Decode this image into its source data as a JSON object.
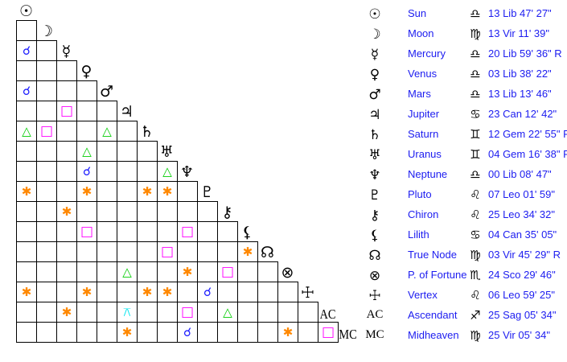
{
  "colors": {
    "conjunction": "#1a1aff",
    "square": "#ff00ff",
    "trine": "#00cc00",
    "sextile": "#ff8800",
    "quincunx": "#00e5ee",
    "text": "#1c1cf0"
  },
  "aspect_symbols": {
    "conjunction": "☌",
    "square": "□",
    "trine": "△",
    "sextile": "✱",
    "quincunx": "⚻"
  },
  "bodies": [
    {
      "icon": "sun-icon",
      "glyph": "☉",
      "name": "Sun",
      "sign_icon": "libra-icon",
      "sign": "♎",
      "position": "13 Lib 47' 27\""
    },
    {
      "icon": "moon-icon",
      "glyph": "☽",
      "name": "Moon",
      "sign_icon": "virgo-icon",
      "sign": "♍",
      "position": "13 Vir 11' 39\""
    },
    {
      "icon": "mercury-icon",
      "glyph": "☿",
      "name": "Mercury",
      "sign_icon": "libra-icon",
      "sign": "♎",
      "position": "20 Lib 59' 36\" R"
    },
    {
      "icon": "venus-icon",
      "glyph": "♀",
      "name": "Venus",
      "sign_icon": "libra-icon",
      "sign": "♎",
      "position": "03 Lib 38' 22\""
    },
    {
      "icon": "mars-icon",
      "glyph": "♂",
      "name": "Mars",
      "sign_icon": "libra-icon",
      "sign": "♎",
      "position": "13 Lib 13' 46\""
    },
    {
      "icon": "jupiter-icon",
      "glyph": "♃",
      "name": "Jupiter",
      "sign_icon": "cancer-icon",
      "sign": "♋",
      "position": "23 Can 12' 42\""
    },
    {
      "icon": "saturn-icon",
      "glyph": "♄",
      "name": "Saturn",
      "sign_icon": "gemini-icon",
      "sign": "♊",
      "position": "12 Gem 22' 55\" R"
    },
    {
      "icon": "uranus-icon",
      "glyph": "♅",
      "name": "Uranus",
      "sign_icon": "gemini-icon",
      "sign": "♊",
      "position": "04 Gem 16' 38\" R"
    },
    {
      "icon": "neptune-icon",
      "glyph": "♆",
      "name": "Neptune",
      "sign_icon": "libra-icon",
      "sign": "♎",
      "position": "00 Lib 08' 47\""
    },
    {
      "icon": "pluto-icon",
      "glyph": "♇",
      "name": "Pluto",
      "sign_icon": "leo-icon",
      "sign": "♌",
      "position": "07 Leo 01' 59\""
    },
    {
      "icon": "chiron-icon",
      "glyph": "⚷",
      "name": "Chiron",
      "sign_icon": "leo-icon",
      "sign": "♌",
      "position": "25 Leo 34' 32\""
    },
    {
      "icon": "lilith-icon",
      "glyph": "⚸",
      "name": "Lilith",
      "sign_icon": "cancer-icon",
      "sign": "♋",
      "position": "04 Can 35' 05\""
    },
    {
      "icon": "true-node-icon",
      "glyph": "☊",
      "name": "True Node",
      "sign_icon": "virgo-icon",
      "sign": "♍",
      "position": "03 Vir 45' 29\" R"
    },
    {
      "icon": "part-of-fortune-icon",
      "glyph": "⊗",
      "name": "P. of Fortune",
      "sign_icon": "scorpio-icon",
      "sign": "♏",
      "position": "24 Sco 29' 46\""
    },
    {
      "icon": "vertex-icon",
      "glyph": "☩",
      "name": "Vertex",
      "sign_icon": "leo-icon",
      "sign": "♌",
      "position": "06 Leo 59' 25\""
    },
    {
      "icon": "ascendant-icon",
      "glyph": "AC",
      "name": "Ascendant",
      "sign_icon": "sagittarius-icon",
      "sign": "♐",
      "position": "25 Sag 05' 34\""
    },
    {
      "icon": "midheaven-icon",
      "glyph": "MC",
      "name": "Midheaven",
      "sign_icon": "virgo-icon",
      "sign": "♍",
      "position": "25 Vir 05' 34\""
    }
  ],
  "aspects": [
    {
      "row": 2,
      "col": 0,
      "type": "conjunction"
    },
    {
      "row": 4,
      "col": 0,
      "type": "conjunction"
    },
    {
      "row": 5,
      "col": 2,
      "type": "square"
    },
    {
      "row": 6,
      "col": 0,
      "type": "trine"
    },
    {
      "row": 6,
      "col": 1,
      "type": "square"
    },
    {
      "row": 6,
      "col": 4,
      "type": "trine"
    },
    {
      "row": 7,
      "col": 3,
      "type": "trine"
    },
    {
      "row": 8,
      "col": 3,
      "type": "conjunction"
    },
    {
      "row": 8,
      "col": 7,
      "type": "trine"
    },
    {
      "row": 9,
      "col": 0,
      "type": "sextile"
    },
    {
      "row": 9,
      "col": 3,
      "type": "sextile"
    },
    {
      "row": 9,
      "col": 6,
      "type": "sextile"
    },
    {
      "row": 9,
      "col": 7,
      "type": "sextile"
    },
    {
      "row": 10,
      "col": 2,
      "type": "sextile"
    },
    {
      "row": 11,
      "col": 3,
      "type": "square"
    },
    {
      "row": 11,
      "col": 8,
      "type": "square"
    },
    {
      "row": 12,
      "col": 7,
      "type": "square"
    },
    {
      "row": 12,
      "col": 11,
      "type": "sextile"
    },
    {
      "row": 13,
      "col": 5,
      "type": "trine"
    },
    {
      "row": 13,
      "col": 8,
      "type": "sextile"
    },
    {
      "row": 13,
      "col": 10,
      "type": "square"
    },
    {
      "row": 14,
      "col": 0,
      "type": "sextile"
    },
    {
      "row": 14,
      "col": 3,
      "type": "sextile"
    },
    {
      "row": 14,
      "col": 6,
      "type": "sextile"
    },
    {
      "row": 14,
      "col": 7,
      "type": "sextile"
    },
    {
      "row": 14,
      "col": 9,
      "type": "conjunction"
    },
    {
      "row": 15,
      "col": 2,
      "type": "sextile"
    },
    {
      "row": 15,
      "col": 5,
      "type": "quincunx"
    },
    {
      "row": 15,
      "col": 8,
      "type": "square"
    },
    {
      "row": 15,
      "col": 10,
      "type": "trine"
    },
    {
      "row": 16,
      "col": 5,
      "type": "sextile"
    },
    {
      "row": 16,
      "col": 8,
      "type": "conjunction"
    },
    {
      "row": 16,
      "col": 13,
      "type": "sextile"
    },
    {
      "row": 16,
      "col": 15,
      "type": "square"
    }
  ]
}
